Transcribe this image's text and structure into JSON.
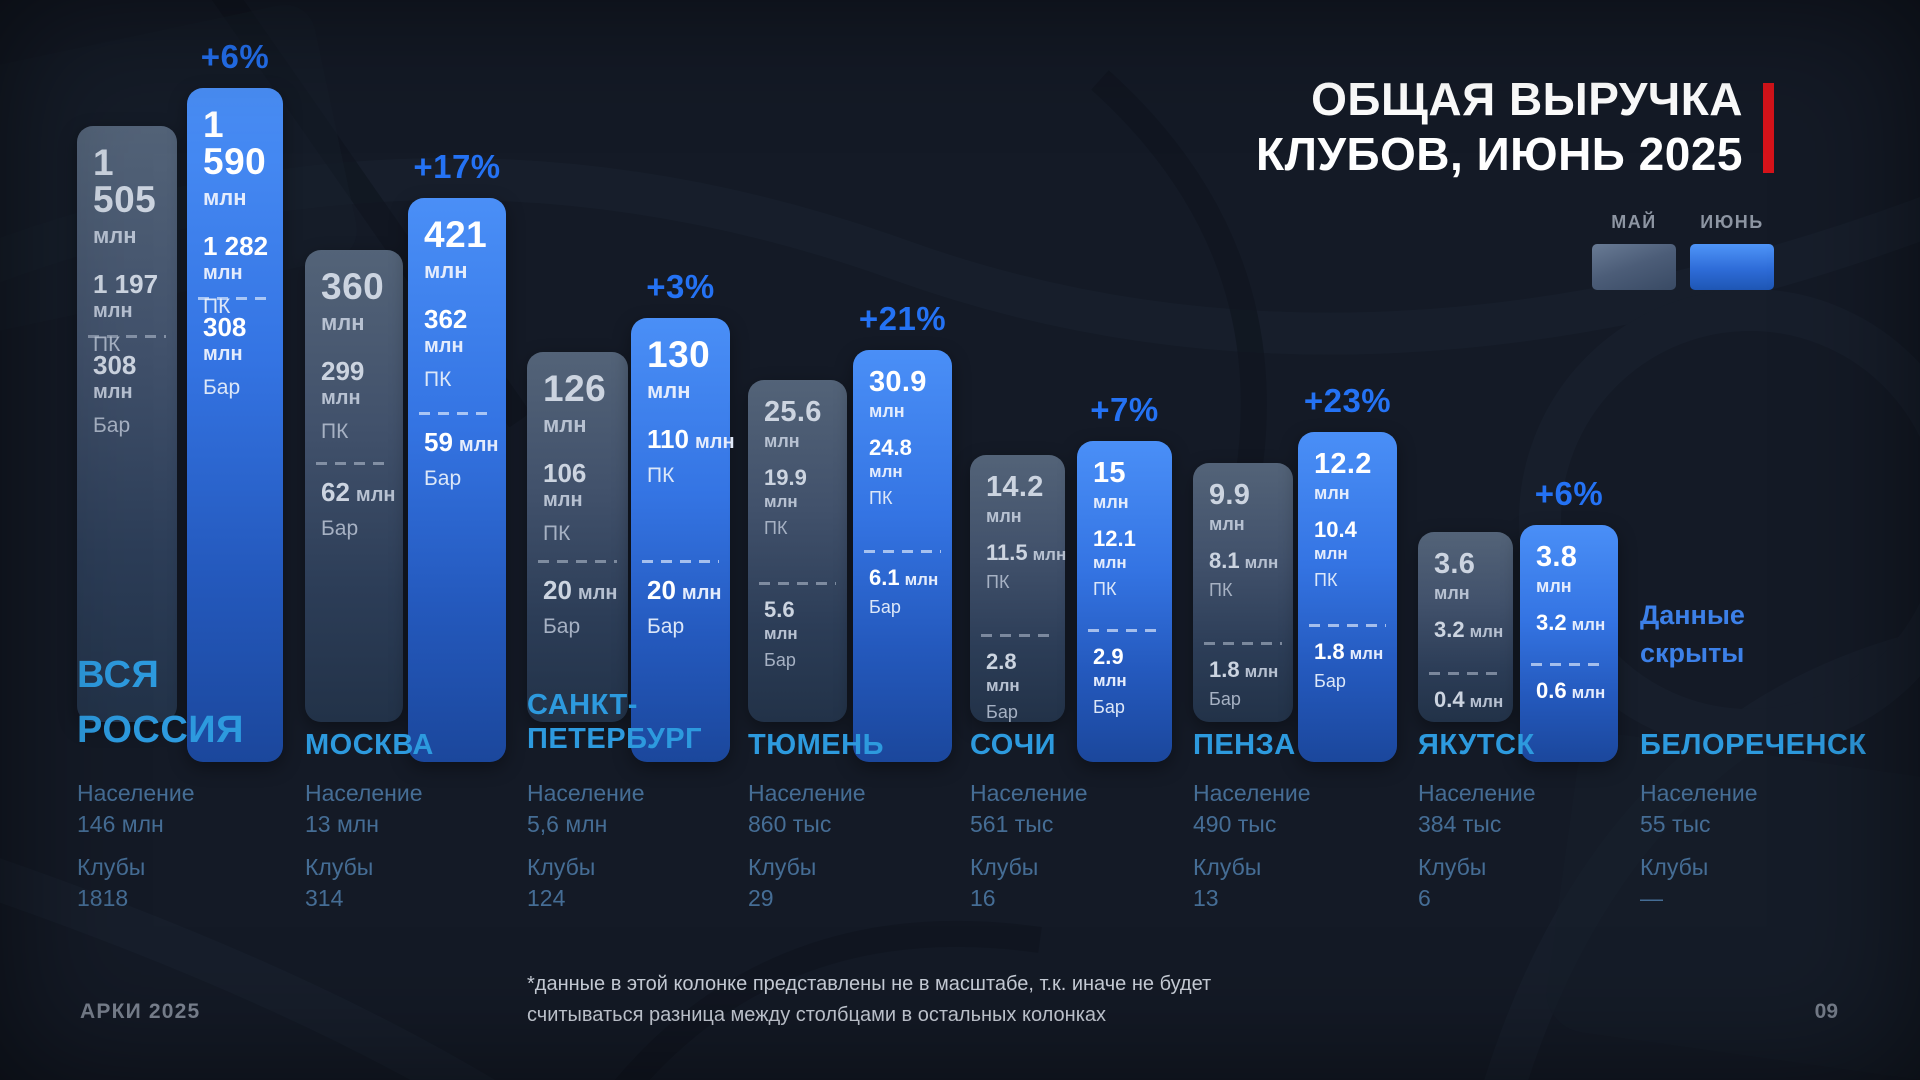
{
  "page": {
    "title_line1": "ОБЩАЯ ВЫРУЧКА",
    "title_line2": "КЛУБОВ, ИЮНЬ 2025",
    "footer_brand": "АРКИ 2025",
    "footer_page": "09",
    "footnote_line1": "*данные в этой колонке представлены не в масштабе, т.к. иначе не будет",
    "footnote_line2": "считываться разница между столбцами в остальных колонках"
  },
  "legend": {
    "may_label": "МАЙ",
    "june_label": "ИЮНЬ"
  },
  "labels": {
    "population": "Население",
    "clubs": "Клубы",
    "pc": "ПК",
    "bar": "Бар",
    "unit": "млн"
  },
  "colors": {
    "background": "#141a26",
    "accent_blue": "#2472f4",
    "june_bar_top": "#4a8ff7",
    "june_bar_bottom": "#1b479c",
    "may_bar_top": "#536378",
    "may_bar_bottom": "#223248",
    "city_name": "#2d9ade",
    "info_text": "#456d95",
    "hidden_note": "#3c80e8",
    "red_marker": "#d6131a",
    "title_text": "#ffffff"
  },
  "chart_data": {
    "type": "bar",
    "title": "ОБЩАЯ ВЫРУЧКА КЛУБОВ, ИЮНЬ 2025",
    "unit": "млн",
    "series_labels": [
      "МАЙ",
      "ИЮНЬ"
    ],
    "segment_labels": [
      "ПК",
      "Бар"
    ],
    "note": "первая колонка не в масштабе",
    "cities": [
      {
        "key": "russia",
        "name_lines": [
          "ВСЯ",
          "РОССИЯ"
        ],
        "population": "146 млн",
        "clubs": "1818",
        "growth": "+6%",
        "growth_value": 6,
        "may": {
          "total": 1505,
          "total_text": "1 505",
          "pc": 1197,
          "pc_text": "1 197",
          "pc_style": "stacked",
          "bar": 308,
          "bar_text": "308",
          "bar_style": "stacked",
          "category_labels": true
        },
        "june": {
          "total": 1590,
          "total_text": "1 590",
          "pc": 1282,
          "pc_text": "1 282",
          "pc_style": "stacked",
          "bar": 308,
          "bar_text": "308",
          "bar_style": "stacked",
          "category_labels": true
        }
      },
      {
        "key": "moscow",
        "name_lines": [
          "МОСКВА"
        ],
        "population": "13 млн",
        "clubs": "314",
        "growth": "+17%",
        "growth_value": 17,
        "may": {
          "total": 360,
          "total_text": "360",
          "pc": 299,
          "pc_text": "299",
          "pc_style": "stacked",
          "bar": 62,
          "bar_text": "62",
          "bar_style": "inline",
          "category_labels": true
        },
        "june": {
          "total": 421,
          "total_text": "421",
          "pc": 362,
          "pc_text": "362",
          "pc_style": "stacked",
          "bar": 59,
          "bar_text": "59",
          "bar_style": "inline",
          "category_labels": true
        }
      },
      {
        "key": "spb",
        "name_lines": [
          "САНКТ-",
          "ПЕТЕРБУРГ"
        ],
        "population": "5,6 млн",
        "clubs": "124",
        "growth": "+3%",
        "growth_value": 3,
        "may": {
          "total": 126,
          "total_text": "126",
          "pc": 106,
          "pc_text": "106",
          "pc_style": "stacked",
          "bar": 20,
          "bar_text": "20",
          "bar_style": "inline",
          "category_labels": true
        },
        "june": {
          "total": 130,
          "total_text": "130",
          "pc": 110,
          "pc_text": "110",
          "pc_style": "inline",
          "bar": 20,
          "bar_text": "20",
          "bar_style": "inline",
          "category_labels": true
        }
      },
      {
        "key": "tyumen",
        "name_lines": [
          "ТЮМЕНЬ"
        ],
        "population": "860 тыс",
        "clubs": "29",
        "growth": "+21%",
        "growth_value": 21,
        "may": {
          "total": 25.6,
          "total_text": "25.6",
          "pc": 19.9,
          "pc_text": "19.9",
          "pc_style": "stacked",
          "bar": 5.6,
          "bar_text": "5.6",
          "bar_style": "stacked",
          "category_labels": true
        },
        "june": {
          "total": 30.9,
          "total_text": "30.9",
          "pc": 24.8,
          "pc_text": "24.8",
          "pc_style": "stacked",
          "bar": 6.1,
          "bar_text": "6.1",
          "bar_style": "inline",
          "category_labels": true
        }
      },
      {
        "key": "sochi",
        "name_lines": [
          "СОЧИ"
        ],
        "population": "561 тыс",
        "clubs": "16",
        "growth": "+7%",
        "growth_value": 7,
        "may": {
          "total": 14.2,
          "total_text": "14.2",
          "pc": 11.5,
          "pc_text": "11.5",
          "pc_style": "inline",
          "bar": 2.8,
          "bar_text": "2.8",
          "bar_style": "stacked",
          "category_labels": true
        },
        "june": {
          "total": 15,
          "total_text": "15",
          "pc": 12.1,
          "pc_text": "12.1",
          "pc_style": "stacked",
          "bar": 2.9,
          "bar_text": "2.9",
          "bar_style": "stacked",
          "category_labels": true
        }
      },
      {
        "key": "penza",
        "name_lines": [
          "ПЕНЗА"
        ],
        "population": "490 тыс",
        "clubs": "13",
        "growth": "+23%",
        "growth_value": 23,
        "may": {
          "total": 9.9,
          "total_text": "9.9",
          "pc": 8.1,
          "pc_text": "8.1",
          "pc_style": "inline",
          "bar": 1.8,
          "bar_text": "1.8",
          "bar_style": "inline",
          "category_labels": true
        },
        "june": {
          "total": 12.2,
          "total_text": "12.2",
          "pc": 10.4,
          "pc_text": "10.4",
          "pc_style": "stacked",
          "bar": 1.8,
          "bar_text": "1.8",
          "bar_style": "inline",
          "category_labels": true
        }
      },
      {
        "key": "yakutsk",
        "name_lines": [
          "ЯКУТСК"
        ],
        "population": "384 тыс",
        "clubs": "6",
        "growth": "+6%",
        "growth_value": 6,
        "may": {
          "total": 3.6,
          "total_text": "3.6",
          "pc": 3.2,
          "pc_text": "3.2",
          "pc_style": "inline",
          "bar": 0.4,
          "bar_text": "0.4",
          "bar_style": "inline",
          "category_labels": false
        },
        "june": {
          "total": 3.8,
          "total_text": "3.8",
          "pc": 3.2,
          "pc_text": "3.2",
          "pc_style": "inline",
          "bar": 0.6,
          "bar_text": "0.6",
          "bar_style": "inline",
          "category_labels": false
        }
      },
      {
        "key": "belorechensk",
        "name_lines": [
          "БЕЛОРЕЧЕНСК"
        ],
        "population": "55 тыс",
        "clubs": "—",
        "growth": null,
        "hidden_note_lines": [
          "Данные",
          "скрыты"
        ],
        "may": null,
        "june": null
      }
    ]
  }
}
